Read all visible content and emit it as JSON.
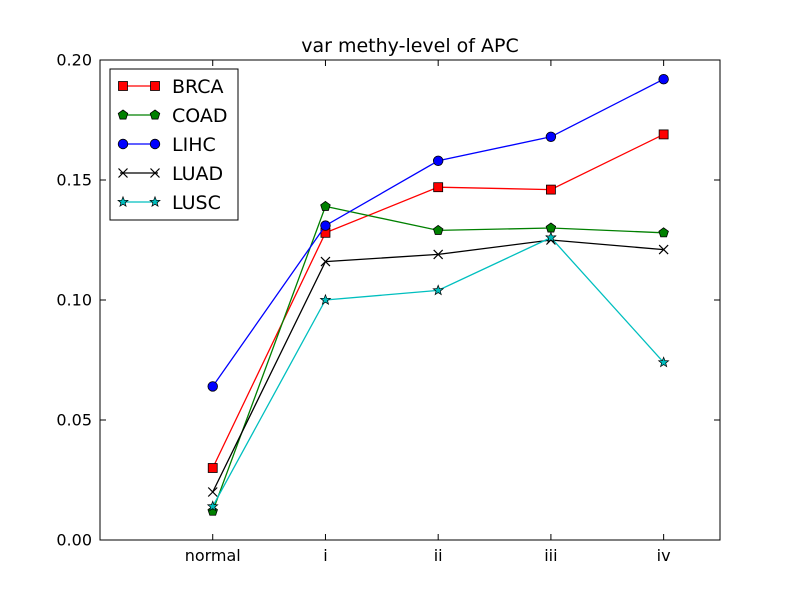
{
  "chart_data": {
    "type": "line",
    "title": "var methy-level of APC",
    "xlabel": "",
    "ylabel": "",
    "categories": [
      "normal",
      "i",
      "ii",
      "iii",
      "iv"
    ],
    "ylim": [
      0.0,
      0.2
    ],
    "yticks": [
      0.0,
      0.05,
      0.1,
      0.15,
      0.2
    ],
    "ytick_labels": [
      "0.00",
      "0.05",
      "0.10",
      "0.15",
      "0.20"
    ],
    "grid": false,
    "legend_position": "top-left",
    "series": [
      {
        "name": "BRCA",
        "color": "#ff0000",
        "marker": "square",
        "values": [
          0.03,
          0.128,
          0.147,
          0.146,
          0.169
        ]
      },
      {
        "name": "COAD",
        "color": "#008000",
        "marker": "pentagon",
        "values": [
          0.012,
          0.139,
          0.129,
          0.13,
          0.128
        ]
      },
      {
        "name": "LIHC",
        "color": "#0000ff",
        "marker": "circle",
        "values": [
          0.064,
          0.131,
          0.158,
          0.168,
          0.192
        ]
      },
      {
        "name": "LUAD",
        "color": "#000000",
        "marker": "x",
        "values": [
          0.02,
          0.116,
          0.119,
          0.125,
          0.121
        ]
      },
      {
        "name": "LUSC",
        "color": "#00bfbf",
        "marker": "star",
        "values": [
          0.014,
          0.1,
          0.104,
          0.126,
          0.074
        ]
      }
    ]
  }
}
